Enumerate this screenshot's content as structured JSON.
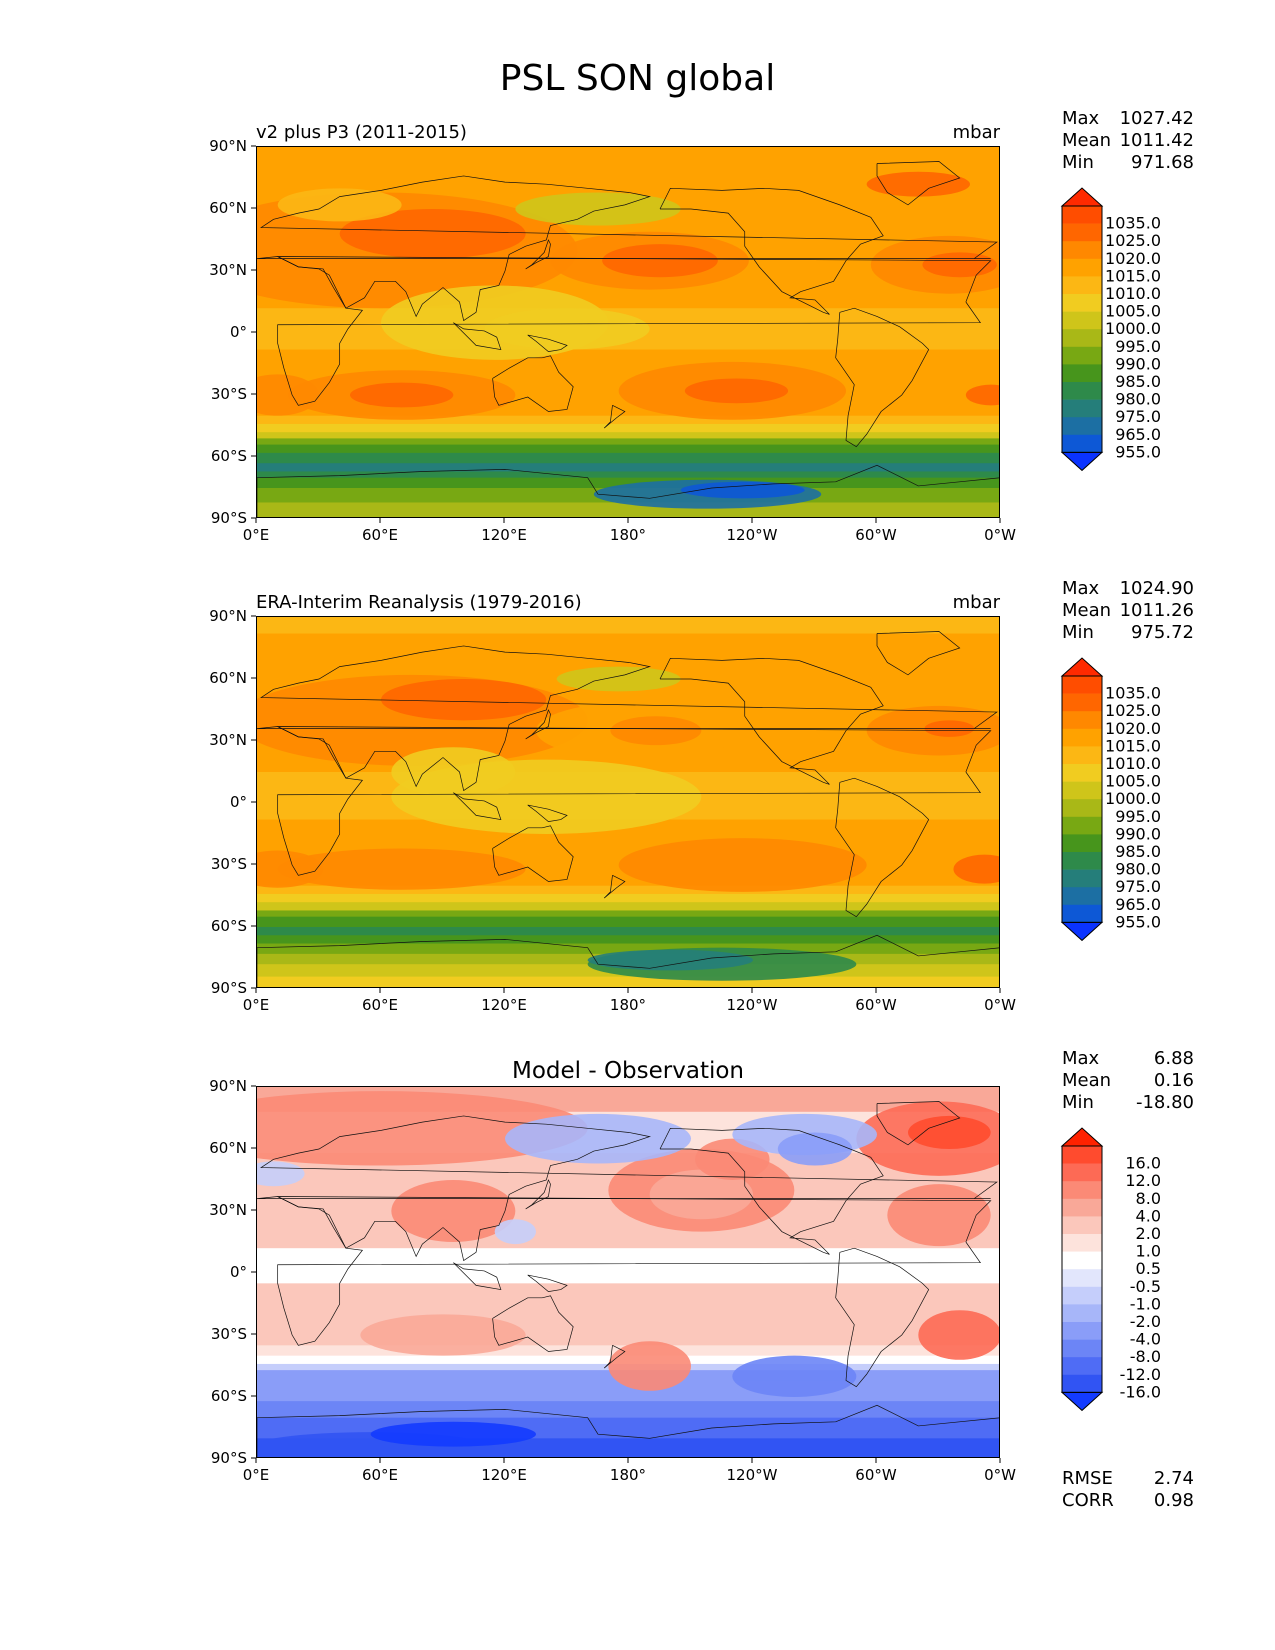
{
  "figure_title": "PSL SON global",
  "chart_data": [
    {
      "type": "heatmap",
      "subtitle": "v2 plus P3 (2011-2015)",
      "units": "mbar",
      "x_ticks": [
        "0°E",
        "60°E",
        "120°E",
        "180°",
        "120°W",
        "60°W",
        "0°W"
      ],
      "y_ticks": [
        "90°N",
        "60°N",
        "30°N",
        "0°",
        "30°S",
        "60°S",
        "90°S"
      ],
      "xlim": [
        0,
        360
      ],
      "ylim": [
        -90,
        90
      ],
      "stats": [
        {
          "label": "Max",
          "value": "1027.42"
        },
        {
          "label": "Mean",
          "value": "1011.42"
        },
        {
          "label": "Min",
          "value": "971.68"
        }
      ],
      "colorbar": {
        "levels": [
          "1035.0",
          "1025.0",
          "1020.0",
          "1015.0",
          "1010.0",
          "1005.0",
          "1000.0",
          "995.0",
          "990.0",
          "985.0",
          "980.0",
          "975.0",
          "965.0",
          "955.0"
        ],
        "colors": [
          "#ff2a00",
          "#ff4d00",
          "#ff6600",
          "#ff8800",
          "#ffa200",
          "#fcb714",
          "#f1cc20",
          "#cfc51a",
          "#a9b817",
          "#78a813",
          "#47951c",
          "#2e8a4a",
          "#257e7a",
          "#1c6fa3",
          "#0d58d6",
          "#0a33ff"
        ]
      }
    },
    {
      "type": "heatmap",
      "subtitle": "ERA-Interim Reanalysis (1979-2016)",
      "units": "mbar",
      "x_ticks": [
        "0°E",
        "60°E",
        "120°E",
        "180°",
        "120°W",
        "60°W",
        "0°W"
      ],
      "y_ticks": [
        "90°N",
        "60°N",
        "30°N",
        "0°",
        "30°S",
        "60°S",
        "90°S"
      ],
      "xlim": [
        0,
        360
      ],
      "ylim": [
        -90,
        90
      ],
      "stats": [
        {
          "label": "Max",
          "value": "1024.90"
        },
        {
          "label": "Mean",
          "value": "1011.26"
        },
        {
          "label": "Min",
          "value": "975.72"
        }
      ],
      "colorbar": {
        "levels": [
          "1035.0",
          "1025.0",
          "1020.0",
          "1015.0",
          "1010.0",
          "1005.0",
          "1000.0",
          "995.0",
          "990.0",
          "985.0",
          "980.0",
          "975.0",
          "965.0",
          "955.0"
        ],
        "colors": [
          "#ff2a00",
          "#ff4d00",
          "#ff6600",
          "#ff8800",
          "#ffa200",
          "#fcb714",
          "#f1cc20",
          "#cfc51a",
          "#a9b817",
          "#78a813",
          "#47951c",
          "#2e8a4a",
          "#257e7a",
          "#1c6fa3",
          "#0d58d6",
          "#0a33ff"
        ]
      }
    },
    {
      "type": "heatmap",
      "title": "Model - Observation",
      "x_ticks": [
        "0°E",
        "60°E",
        "120°E",
        "180°",
        "120°W",
        "60°W",
        "0°W"
      ],
      "y_ticks": [
        "90°N",
        "60°N",
        "30°N",
        "0°",
        "30°S",
        "60°S",
        "90°S"
      ],
      "xlim": [
        0,
        360
      ],
      "ylim": [
        -90,
        90
      ],
      "stats": [
        {
          "label": "Max",
          "value": "6.88"
        },
        {
          "label": "Mean",
          "value": "0.16"
        },
        {
          "label": "Min",
          "value": "-18.80"
        }
      ],
      "extra_stats": [
        {
          "label": "RMSE",
          "value": "2.74"
        },
        {
          "label": "CORR",
          "value": "0.98"
        }
      ],
      "colorbar": {
        "levels": [
          "16.0",
          "12.0",
          "8.0",
          "4.0",
          "2.0",
          "1.0",
          "0.5",
          "-0.5",
          "-1.0",
          "-2.0",
          "-4.0",
          "-8.0",
          "-12.0",
          "-16.0"
        ],
        "colors": [
          "#ff2200",
          "#ff4b2e",
          "#fd6a55",
          "#fb8a76",
          "#f9a898",
          "#fbc7bb",
          "#fde3dc",
          "#ffffff",
          "#e2e6fc",
          "#c5cefb",
          "#a7b6f9",
          "#8a9df8",
          "#6c85f6",
          "#4f6cf5",
          "#3154f3",
          "#133bff"
        ]
      }
    }
  ]
}
